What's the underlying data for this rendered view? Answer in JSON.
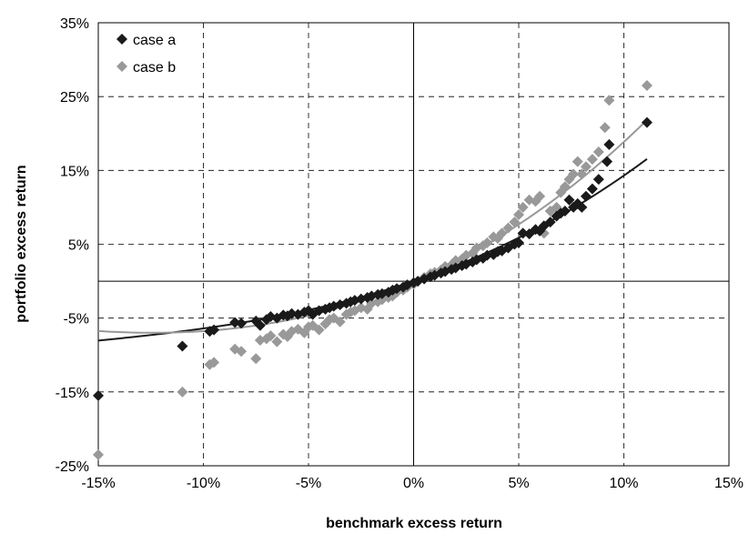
{
  "chart_data": {
    "type": "scatter",
    "title": "",
    "xlabel": "benchmark excess return",
    "ylabel": "portfolio excess return",
    "xlim": [
      -0.15,
      0.15
    ],
    "ylim": [
      -0.25,
      0.35
    ],
    "x_ticks": [
      -0.15,
      -0.1,
      -0.05,
      0,
      0.05,
      0.1,
      0.15
    ],
    "y_ticks": [
      -0.25,
      -0.15,
      -0.05,
      0.05,
      0.15,
      0.25,
      0.35
    ],
    "x_tick_labels": [
      "-15%",
      "-10%",
      "-5%",
      "0%",
      "5%",
      "10%",
      "15%"
    ],
    "y_tick_labels": [
      "-25%",
      "-15%",
      "-5%",
      "5%",
      "15%",
      "25%",
      "35%"
    ],
    "grid": true,
    "legend_position": "top-left",
    "series": [
      {
        "name": "case a",
        "color": "#1a1a1a",
        "marker": "diamond",
        "points": [
          [
            -0.15,
            -0.155
          ],
          [
            -0.11,
            -0.088
          ],
          [
            -0.097,
            -0.068
          ],
          [
            -0.095,
            -0.066
          ],
          [
            -0.085,
            -0.056
          ],
          [
            -0.082,
            -0.057
          ],
          [
            -0.075,
            -0.054
          ],
          [
            -0.073,
            -0.06
          ],
          [
            -0.07,
            -0.052
          ],
          [
            -0.068,
            -0.048
          ],
          [
            -0.065,
            -0.05
          ],
          [
            -0.062,
            -0.046
          ],
          [
            -0.06,
            -0.047
          ],
          [
            -0.058,
            -0.044
          ],
          [
            -0.055,
            -0.045
          ],
          [
            -0.052,
            -0.042
          ],
          [
            -0.05,
            -0.04
          ],
          [
            -0.048,
            -0.045
          ],
          [
            -0.045,
            -0.04
          ],
          [
            -0.042,
            -0.038
          ],
          [
            -0.04,
            -0.036
          ],
          [
            -0.038,
            -0.034
          ],
          [
            -0.035,
            -0.032
          ],
          [
            -0.032,
            -0.03
          ],
          [
            -0.03,
            -0.028
          ],
          [
            -0.028,
            -0.026
          ],
          [
            -0.025,
            -0.024
          ],
          [
            -0.022,
            -0.022
          ],
          [
            -0.02,
            -0.02
          ],
          [
            -0.017,
            -0.018
          ],
          [
            -0.015,
            -0.017
          ],
          [
            -0.012,
            -0.015
          ],
          [
            -0.01,
            -0.012
          ],
          [
            -0.008,
            -0.01
          ],
          [
            -0.005,
            -0.008
          ],
          [
            -0.003,
            -0.005
          ],
          [
            0.0,
            -0.002
          ],
          [
            0.002,
            0.0
          ],
          [
            0.005,
            0.003
          ],
          [
            0.008,
            0.006
          ],
          [
            0.01,
            0.008
          ],
          [
            0.013,
            0.011
          ],
          [
            0.015,
            0.013
          ],
          [
            0.018,
            0.016
          ],
          [
            0.02,
            0.018
          ],
          [
            0.023,
            0.021
          ],
          [
            0.025,
            0.023
          ],
          [
            0.028,
            0.026
          ],
          [
            0.03,
            0.029
          ],
          [
            0.033,
            0.031
          ],
          [
            0.035,
            0.035
          ],
          [
            0.038,
            0.036
          ],
          [
            0.04,
            0.04
          ],
          [
            0.042,
            0.041
          ],
          [
            0.045,
            0.045
          ],
          [
            0.048,
            0.05
          ],
          [
            0.05,
            0.052
          ],
          [
            0.052,
            0.065
          ],
          [
            0.055,
            0.064
          ],
          [
            0.058,
            0.07
          ],
          [
            0.06,
            0.068
          ],
          [
            0.062,
            0.075
          ],
          [
            0.065,
            0.08
          ],
          [
            0.068,
            0.088
          ],
          [
            0.07,
            0.092
          ],
          [
            0.072,
            0.095
          ],
          [
            0.074,
            0.11
          ],
          [
            0.076,
            0.1
          ],
          [
            0.078,
            0.105
          ],
          [
            0.08,
            0.1
          ],
          [
            0.082,
            0.115
          ],
          [
            0.085,
            0.125
          ],
          [
            0.088,
            0.138
          ],
          [
            0.092,
            0.162
          ],
          [
            0.093,
            0.185
          ],
          [
            0.111,
            0.215
          ]
        ]
      },
      {
        "name": "case b",
        "color": "#999999",
        "marker": "diamond",
        "points": [
          [
            -0.15,
            -0.235
          ],
          [
            -0.11,
            -0.15
          ],
          [
            -0.097,
            -0.113
          ],
          [
            -0.095,
            -0.11
          ],
          [
            -0.085,
            -0.092
          ],
          [
            -0.082,
            -0.095
          ],
          [
            -0.075,
            -0.105
          ],
          [
            -0.073,
            -0.08
          ],
          [
            -0.07,
            -0.078
          ],
          [
            -0.068,
            -0.074
          ],
          [
            -0.065,
            -0.082
          ],
          [
            -0.062,
            -0.072
          ],
          [
            -0.06,
            -0.075
          ],
          [
            -0.058,
            -0.068
          ],
          [
            -0.055,
            -0.065
          ],
          [
            -0.052,
            -0.07
          ],
          [
            -0.05,
            -0.062
          ],
          [
            -0.048,
            -0.06
          ],
          [
            -0.045,
            -0.066
          ],
          [
            -0.042,
            -0.058
          ],
          [
            -0.04,
            -0.052
          ],
          [
            -0.038,
            -0.05
          ],
          [
            -0.035,
            -0.055
          ],
          [
            -0.032,
            -0.045
          ],
          [
            -0.03,
            -0.042
          ],
          [
            -0.028,
            -0.04
          ],
          [
            -0.025,
            -0.036
          ],
          [
            -0.022,
            -0.038
          ],
          [
            -0.02,
            -0.03
          ],
          [
            -0.017,
            -0.028
          ],
          [
            -0.015,
            -0.025
          ],
          [
            -0.012,
            -0.022
          ],
          [
            -0.01,
            -0.02
          ],
          [
            -0.008,
            -0.015
          ],
          [
            -0.005,
            -0.012
          ],
          [
            -0.003,
            -0.008
          ],
          [
            0.0,
            -0.004
          ],
          [
            0.002,
            0.0
          ],
          [
            0.005,
            0.005
          ],
          [
            0.008,
            0.01
          ],
          [
            0.01,
            0.012
          ],
          [
            0.013,
            0.015
          ],
          [
            0.015,
            0.02
          ],
          [
            0.018,
            0.022
          ],
          [
            0.02,
            0.028
          ],
          [
            0.023,
            0.03
          ],
          [
            0.025,
            0.035
          ],
          [
            0.028,
            0.038
          ],
          [
            0.03,
            0.045
          ],
          [
            0.033,
            0.048
          ],
          [
            0.035,
            0.052
          ],
          [
            0.038,
            0.06
          ],
          [
            0.04,
            0.058
          ],
          [
            0.042,
            0.065
          ],
          [
            0.045,
            0.072
          ],
          [
            0.048,
            0.08
          ],
          [
            0.05,
            0.09
          ],
          [
            0.052,
            0.1
          ],
          [
            0.055,
            0.11
          ],
          [
            0.058,
            0.108
          ],
          [
            0.06,
            0.115
          ],
          [
            0.062,
            0.065
          ],
          [
            0.065,
            0.095
          ],
          [
            0.068,
            0.1
          ],
          [
            0.07,
            0.12
          ],
          [
            0.072,
            0.128
          ],
          [
            0.074,
            0.138
          ],
          [
            0.076,
            0.145
          ],
          [
            0.078,
            0.162
          ],
          [
            0.08,
            0.145
          ],
          [
            0.082,
            0.155
          ],
          [
            0.085,
            0.165
          ],
          [
            0.088,
            0.175
          ],
          [
            0.091,
            0.208
          ],
          [
            0.093,
            0.245
          ],
          [
            0.111,
            0.265
          ]
        ]
      }
    ],
    "fits": [
      {
        "series": "case a",
        "color": "#1a1a1a",
        "coeffs": [
          0.0,
          0.96,
          3.95,
          7.5
        ],
        "x_range": [
          -0.15,
          0.111
        ]
      },
      {
        "series": "case b",
        "color": "#999999",
        "coeffs": [
          0.0,
          1.22,
          6.05,
          6.1
        ],
        "x_range": [
          -0.15,
          0.111
        ]
      }
    ]
  }
}
